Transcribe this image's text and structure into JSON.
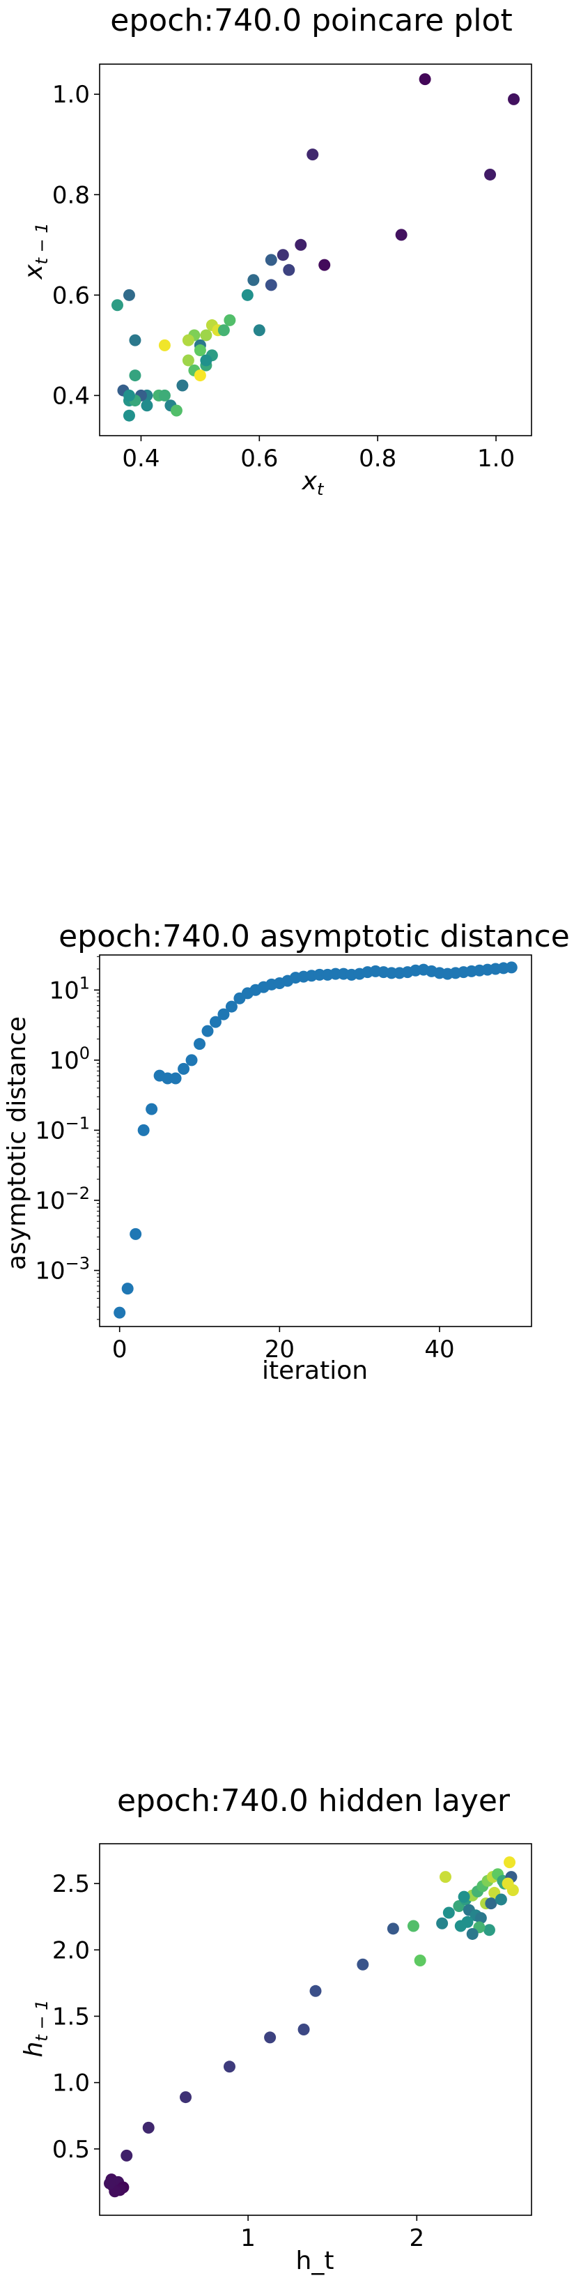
{
  "chart_data": [
    {
      "type": "scatter",
      "title": "epoch:740.0 poincare plot",
      "xlabel_base": "x",
      "xlabel_sub": "t",
      "ylabel_base": "x",
      "ylabel_sub": "t − 1",
      "xlim": [
        0.33,
        1.06
      ],
      "ylim": [
        0.32,
        1.06
      ],
      "xticks": [
        0.4,
        0.6,
        0.8,
        1.0
      ],
      "xtick_labels": [
        "0.4",
        "0.6",
        "0.8",
        "1.0"
      ],
      "yticks": [
        0.4,
        0.6,
        0.8,
        1.0
      ],
      "ytick_labels": [
        "0.4",
        "0.6",
        "0.8",
        "1.0"
      ],
      "colormap": [
        "#440154",
        "#3b528b",
        "#21918c",
        "#5ec962",
        "#fde725"
      ],
      "x": [
        0.88,
        1.03,
        0.99,
        0.69,
        0.84,
        0.71,
        0.67,
        0.65,
        0.64,
        0.62,
        0.62,
        0.59,
        0.58,
        0.6,
        0.49,
        0.52,
        0.53,
        0.51,
        0.5,
        0.55,
        0.54,
        0.52,
        0.48,
        0.44,
        0.5,
        0.51,
        0.49,
        0.51,
        0.47,
        0.43,
        0.37,
        0.38,
        0.39,
        0.41,
        0.4,
        0.36,
        0.39,
        0.38,
        0.41,
        0.44,
        0.45,
        0.38,
        0.39,
        0.46,
        0.38,
        0.5,
        0.48
      ],
      "y": [
        1.03,
        0.99,
        0.84,
        0.88,
        0.72,
        0.66,
        0.7,
        0.65,
        0.68,
        0.67,
        0.62,
        0.63,
        0.6,
        0.53,
        0.52,
        0.54,
        0.53,
        0.52,
        0.5,
        0.55,
        0.53,
        0.48,
        0.51,
        0.5,
        0.49,
        0.46,
        0.45,
        0.47,
        0.42,
        0.4,
        0.41,
        0.6,
        0.51,
        0.4,
        0.4,
        0.58,
        0.44,
        0.39,
        0.38,
        0.4,
        0.38,
        0.36,
        0.39,
        0.37,
        0.4,
        0.44,
        0.47
      ],
      "c": [
        0.02,
        0.05,
        0.08,
        0.12,
        0.05,
        0.03,
        0.1,
        0.2,
        0.15,
        0.3,
        0.25,
        0.35,
        0.5,
        0.45,
        0.8,
        0.9,
        0.95,
        0.85,
        0.4,
        0.7,
        0.65,
        0.55,
        0.88,
        0.98,
        0.75,
        0.6,
        0.72,
        0.5,
        0.4,
        0.65,
        0.3,
        0.35,
        0.4,
        0.45,
        0.3,
        0.55,
        0.58,
        0.52,
        0.48,
        0.62,
        0.45,
        0.5,
        0.6,
        0.7,
        0.5,
        0.99,
        0.85
      ]
    },
    {
      "type": "scatter",
      "title": "epoch:740.0 asymptotic distance",
      "xlabel": "iteration",
      "ylabel": "asymptotic distance",
      "yscale": "log",
      "xlim": [
        -2.5,
        51.5
      ],
      "ylim_log10": [
        -3.8,
        1.5
      ],
      "xticks": [
        0,
        20,
        40
      ],
      "xtick_labels": [
        "0",
        "20",
        "40"
      ],
      "ytick_exponents": [
        -3,
        -2,
        -1,
        0,
        1
      ],
      "ytick_base": "10",
      "ytick_exp_labels": [
        "−3",
        "−2",
        "−1",
        "0",
        "1"
      ],
      "color": "#1f77b4",
      "x": [
        0,
        1,
        2,
        3,
        4,
        5,
        6,
        7,
        8,
        9,
        10,
        11,
        12,
        13,
        14,
        15,
        16,
        17,
        18,
        19,
        20,
        21,
        22,
        23,
        24,
        25,
        26,
        27,
        28,
        29,
        30,
        31,
        32,
        33,
        34,
        35,
        36,
        37,
        38,
        39,
        40,
        41,
        42,
        43,
        44,
        45,
        46,
        47,
        48,
        49
      ],
      "y": [
        0.00025,
        0.00055,
        0.0033,
        0.1,
        0.2,
        0.6,
        0.55,
        0.55,
        0.75,
        1.0,
        1.7,
        2.6,
        3.5,
        4.5,
        5.8,
        7.6,
        9.0,
        10.0,
        11.0,
        12.0,
        12.5,
        13.5,
        15.0,
        15.5,
        16.0,
        16.5,
        16.5,
        17.0,
        17.0,
        16.5,
        17.0,
        18.0,
        18.5,
        18.0,
        17.5,
        17.5,
        18.0,
        19.0,
        19.5,
        18.5,
        17.5,
        17.0,
        17.5,
        18.0,
        18.5,
        19.0,
        19.5,
        20.0,
        20.5,
        21.0
      ]
    },
    {
      "type": "scatter",
      "title": "epoch:740.0 hidden layer",
      "xlabel": "h_t",
      "ylabel_base": "h",
      "ylabel_sub": "t − 1",
      "xlim": [
        0.12,
        2.68
      ],
      "ylim": [
        0.0,
        2.8
      ],
      "xticks": [
        1,
        2
      ],
      "xtick_labels": [
        "1",
        "2"
      ],
      "yticks": [
        0.5,
        1.0,
        1.5,
        2.0,
        2.5
      ],
      "ytick_labels": [
        "0.5",
        "1.0",
        "1.5",
        "2.0",
        "2.5"
      ],
      "colormap": [
        "#440154",
        "#3b528b",
        "#21918c",
        "#5ec962",
        "#fde725"
      ],
      "x": [
        0.2,
        0.22,
        0.19,
        0.23,
        0.26,
        0.24,
        0.21,
        0.18,
        0.28,
        0.41,
        0.63,
        0.89,
        1.13,
        1.33,
        1.4,
        1.68,
        1.86,
        1.98,
        2.02,
        2.15,
        2.19,
        2.25,
        2.29,
        2.33,
        2.36,
        2.39,
        2.42,
        2.45,
        2.48,
        2.52,
        2.55,
        2.57,
        2.17,
        2.28,
        2.31,
        2.35,
        2.41,
        2.46,
        2.51,
        2.56,
        2.3,
        2.38,
        2.44,
        2.5,
        2.54,
        2.43,
        2.37,
        2.33,
        2.26
      ],
      "y": [
        0.22,
        0.2,
        0.27,
        0.25,
        0.21,
        0.19,
        0.18,
        0.24,
        0.45,
        0.66,
        0.89,
        1.12,
        1.34,
        1.4,
        1.69,
        1.89,
        2.16,
        2.18,
        1.92,
        2.2,
        2.28,
        2.33,
        2.38,
        2.41,
        2.44,
        2.48,
        2.52,
        2.55,
        2.57,
        2.5,
        2.66,
        2.45,
        2.55,
        2.4,
        2.3,
        2.26,
        2.35,
        2.43,
        2.52,
        2.55,
        2.21,
        2.24,
        2.35,
        2.38,
        2.5,
        2.15,
        2.17,
        2.12,
        2.18
      ],
      "c": [
        0.02,
        0.03,
        0.04,
        0.05,
        0.02,
        0.03,
        0.04,
        0.05,
        0.1,
        0.12,
        0.15,
        0.18,
        0.2,
        0.22,
        0.24,
        0.26,
        0.28,
        0.7,
        0.75,
        0.45,
        0.5,
        0.6,
        0.55,
        0.85,
        0.65,
        0.7,
        0.8,
        0.9,
        0.75,
        0.6,
        0.98,
        0.95,
        0.92,
        0.5,
        0.4,
        0.45,
        0.88,
        0.92,
        0.6,
        0.3,
        0.5,
        0.4,
        0.35,
        0.45,
        0.96,
        0.55,
        0.65,
        0.4,
        0.5
      ]
    }
  ]
}
